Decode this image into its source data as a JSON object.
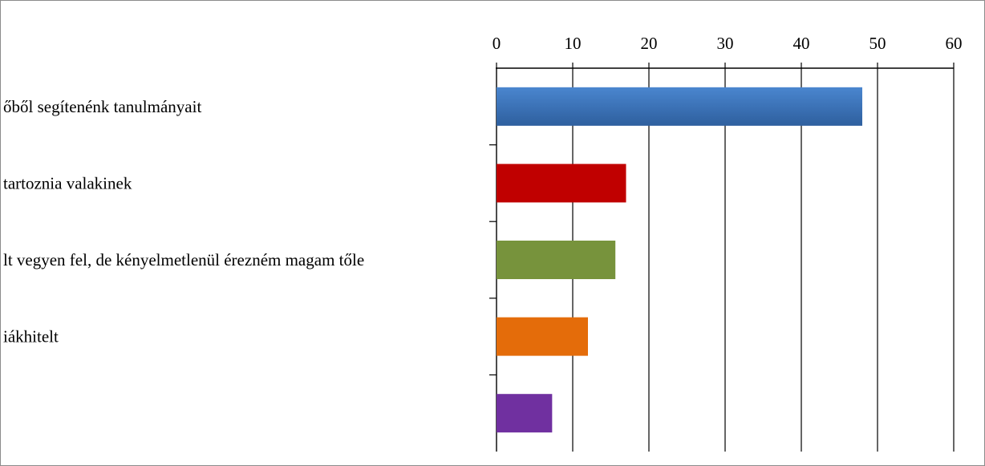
{
  "chart_data": {
    "type": "bar",
    "orientation": "horizontal",
    "categories": [
      "őből segítenénk tanulmányait",
      "tartoznia valakinek",
      "lt vegyen fel, de kényelmetlenül érezném magam tőle",
      "iákhitelt",
      ""
    ],
    "values": [
      48,
      17,
      15.6,
      12,
      7.3
    ],
    "colors": [
      "#3a6fb5",
      "#c00000",
      "#77933c",
      "#e46c0a",
      "#7030a0"
    ],
    "title": "",
    "xlabel": "",
    "ylabel": "",
    "xlim": [
      0,
      60
    ],
    "xticks": [
      "0",
      "10",
      "20",
      "30",
      "40",
      "50",
      "60"
    ],
    "xtick_values": [
      0,
      10,
      20,
      30,
      40,
      50,
      60
    ],
    "x_axis_position": "top",
    "grid": true,
    "legend": "none"
  }
}
